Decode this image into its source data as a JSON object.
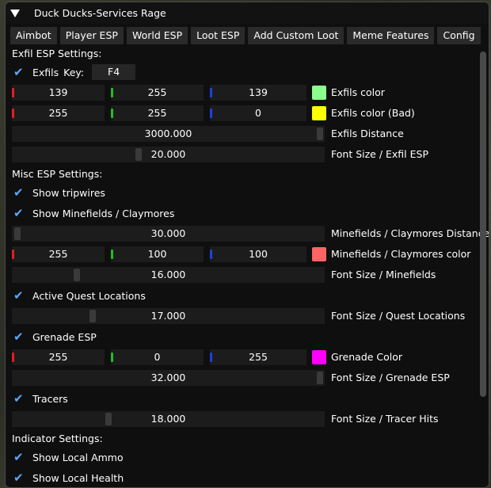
{
  "window": {
    "title": "Duck Ducks-Services Rage"
  },
  "tabs": [
    "Aimbot",
    "Player ESP",
    "World ESP",
    "Loot ESP",
    "Add Custom Loot",
    "Meme Features",
    "Config"
  ],
  "exfil": {
    "heading": "Exfil ESP Settings:",
    "exfils_label": "Exfils",
    "key_label": "Key:",
    "key_value": "F4",
    "color": {
      "r": "139",
      "g": "255",
      "b": "139",
      "label": "Exfils color",
      "swatch": "#8bff8b"
    },
    "color_bad": {
      "r": "255",
      "g": "255",
      "b": "0",
      "label": "Exfils color (Bad)",
      "swatch": "#ffff00"
    },
    "distance": {
      "value": "3000.000",
      "label": "Exfils Distance"
    },
    "font_size": {
      "value": "20.000",
      "label": "Font Size / Exfil ESP"
    }
  },
  "misc": {
    "heading": "Misc ESP Settings:",
    "tripwires": "Show tripwires",
    "minefields": "Show Minefields / Claymores",
    "mine_distance": {
      "value": "30.000",
      "label": "Minefields / Claymores Distance"
    },
    "mine_color": {
      "r": "255",
      "g": "100",
      "b": "100",
      "label": "Minefields / Claymores color",
      "swatch": "#ff6464"
    },
    "mine_font": {
      "value": "16.000",
      "label": "Font Size / Minefields"
    },
    "quest": "Active Quest Locations",
    "quest_font": {
      "value": "17.000",
      "label": "Font Size / Quest Locations"
    },
    "grenade": "Grenade ESP",
    "grenade_color": {
      "r": "255",
      "g": "0",
      "b": "255",
      "label": "Grenade Color",
      "swatch": "#ff00ff"
    },
    "grenade_font": {
      "value": "32.000",
      "label": "Font Size / Grenade ESP"
    },
    "tracers": "Tracers",
    "tracer_font": {
      "value": "18.000",
      "label": "Font Size / Tracer Hits"
    }
  },
  "indicator": {
    "heading": "Indicator Settings:",
    "ammo": "Show Local Ammo",
    "health": "Show Local Health"
  },
  "colors": {
    "accent": "#5aa8ff",
    "red_channel": "#e02020",
    "green_channel": "#20c020",
    "blue_channel": "#2040e0"
  }
}
